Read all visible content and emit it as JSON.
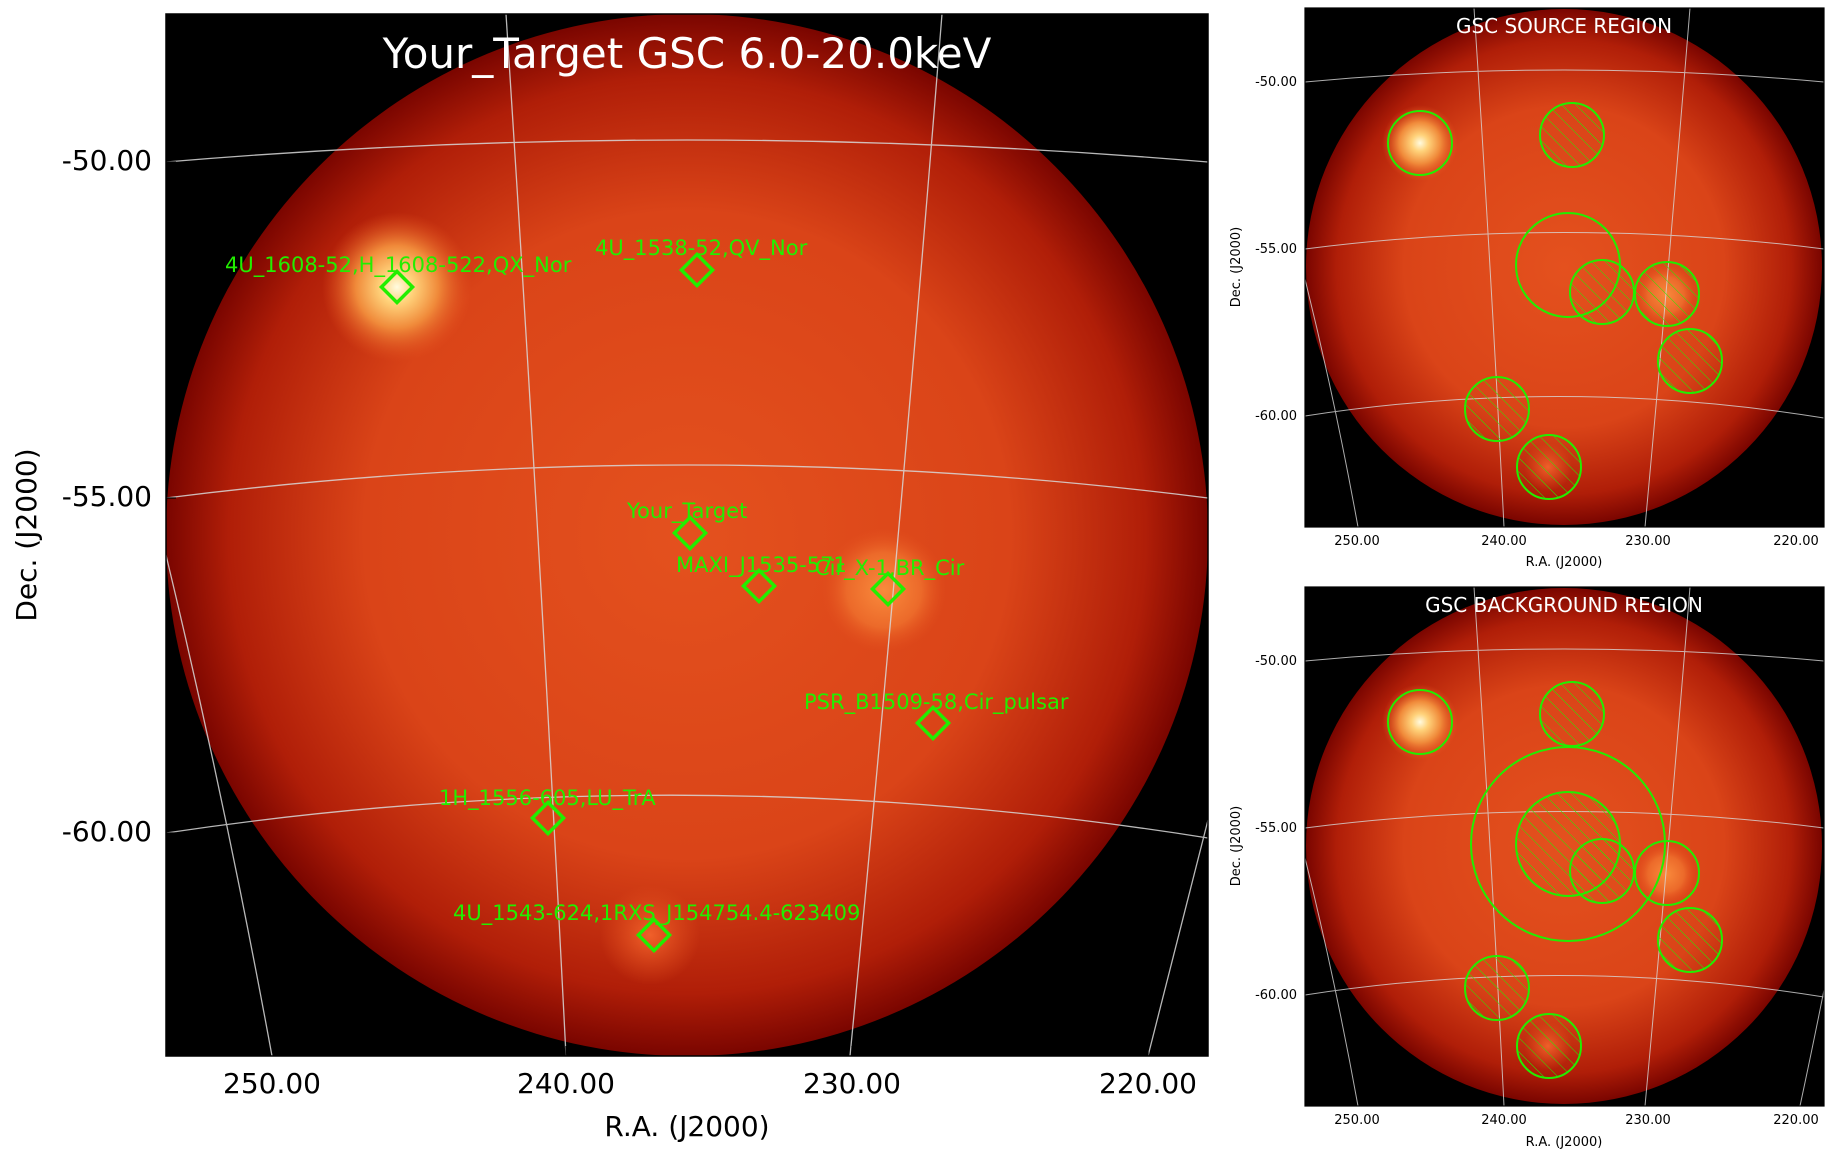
{
  "colors": {
    "background": "#000000",
    "map_core": "#e2501e",
    "map_edge": "#8e0a02",
    "marker": "#22ee00",
    "grid": "#d8d8d8"
  },
  "main_panel": {
    "title": "Your_Target GSC 6.0-20.0keV",
    "xlabel": "R.A. (J2000)",
    "ylabel": "Dec. (J2000)",
    "xticks": [
      "250.00",
      "240.00",
      "230.00",
      "220.00"
    ],
    "yticks": [
      "-50.00",
      "-55.00",
      "-60.00"
    ],
    "sources": [
      {
        "label": "4U_1608-52,H_1608-522,QX_Nor",
        "ra": 243.2,
        "dec": -52.4
      },
      {
        "label": "4U_1538-52,QV_Nor",
        "ra": 235.6,
        "dec": -52.4
      },
      {
        "label": "Your_Target",
        "ra": 235.4,
        "dec": -56.2
      },
      {
        "label": "MAXI_J1535-571",
        "ra": 233.8,
        "dec": -57.2
      },
      {
        "label": "Cir_X-1,BR_Cir",
        "ra": 230.2,
        "dec": -57.2
      },
      {
        "label": "PSR_B1509-58,Cir_pulsar",
        "ra": 228.5,
        "dec": -59.1
      },
      {
        "label": "1H_1556-605,LU_TrA",
        "ra": 239.9,
        "dec": -60.5
      },
      {
        "label": "4U_1543-624,1RXS_J154754.4-623409",
        "ra": 236.7,
        "dec": -62.3
      }
    ]
  },
  "source_panel": {
    "title": "GSC SOURCE REGION",
    "xlabel": "R.A. (J2000)",
    "ylabel": "Dec. (J2000)",
    "xticks": [
      "250.00",
      "240.00",
      "230.00",
      "220.00"
    ],
    "yticks": [
      "-50.00",
      "-55.00",
      "-60.00"
    ]
  },
  "background_panel": {
    "title": "GSC BACKGROUND REGION",
    "xlabel": "R.A. (J2000)",
    "ylabel": "Dec. (J2000)",
    "xticks": [
      "250.00",
      "240.00",
      "230.00",
      "220.00"
    ],
    "yticks": [
      "-50.00",
      "-55.00",
      "-60.00"
    ]
  }
}
